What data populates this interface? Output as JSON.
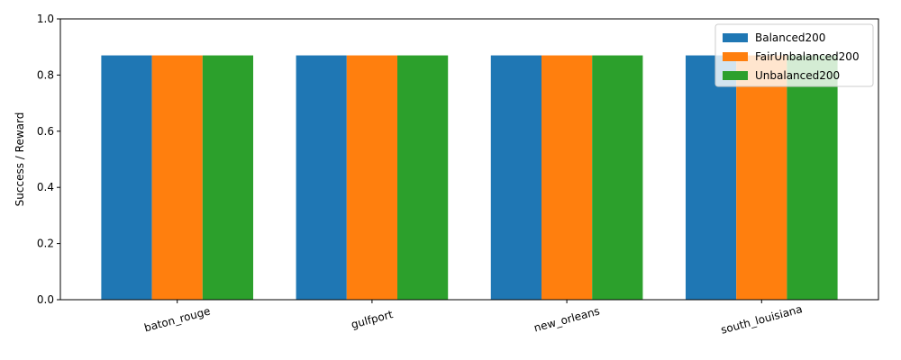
{
  "chart_data": {
    "type": "bar",
    "title": "",
    "xlabel": "",
    "ylabel": "Success / Reward",
    "categories": [
      "baton_rouge",
      "gulfport",
      "new_orleans",
      "south_louisiana"
    ],
    "series": [
      {
        "name": "Balanced200",
        "color": "#1f77b4",
        "values": [
          0.87,
          0.87,
          0.87,
          0.87
        ]
      },
      {
        "name": "FairUnbalanced200",
        "color": "#ff7f0e",
        "values": [
          0.87,
          0.87,
          0.87,
          0.87
        ]
      },
      {
        "name": "Unbalanced200",
        "color": "#2ca02c",
        "values": [
          0.87,
          0.87,
          0.87,
          0.87
        ]
      }
    ],
    "ylim": [
      0,
      1.0
    ],
    "yticks": [
      "0.0",
      "0.2",
      "0.4",
      "0.6",
      "0.8",
      "1.0"
    ],
    "grid": false,
    "legend_position": "top-right",
    "xtick_rotation_deg": 15
  }
}
